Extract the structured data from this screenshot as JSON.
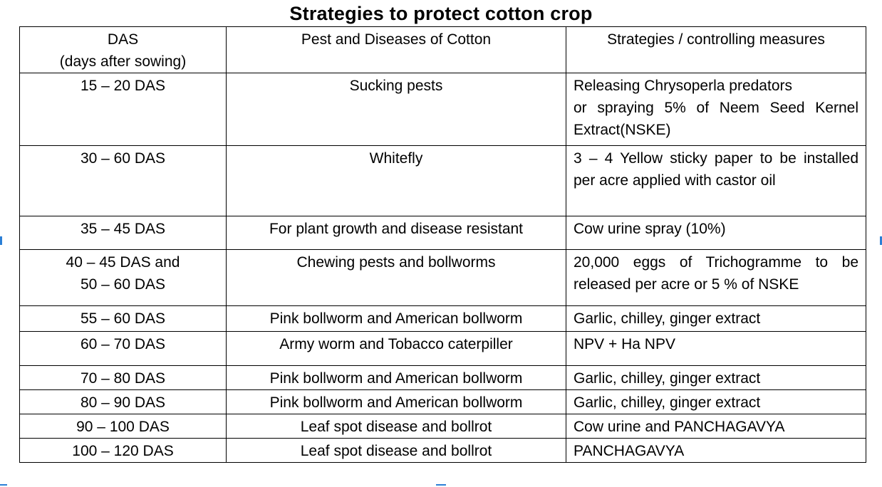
{
  "title": "Strategies to protect cotton crop",
  "table": {
    "headers": {
      "das": "DAS\n(days after sowing)",
      "pest": "Pest and Diseases of Cotton",
      "strategy": "Strategies / controlling measures"
    },
    "rows": [
      {
        "das": "15 – 20 DAS",
        "pest": "Sucking pests",
        "strategy": "Releasing Chrysoperla predators\nor spraying 5% of Neem Seed Kernel Extract(NSKE)"
      },
      {
        "das": "30 – 60 DAS",
        "pest": "Whitefly",
        "strategy": "3 – 4 Yellow sticky paper to be installed per acre applied with castor oil"
      },
      {
        "das": "35 – 45 DAS",
        "pest": "For plant growth and disease resistant",
        "strategy": "Cow urine spray (10%)"
      },
      {
        "das": "40 – 45 DAS and\n50 – 60 DAS",
        "pest": "Chewing pests and bollworms",
        "strategy": "20,000 eggs of Trichogramme to be released per acre or 5 % of NSKE"
      },
      {
        "das": "55 – 60 DAS",
        "pest": "Pink bollworm and  American bollworm",
        "strategy": "Garlic, chilley, ginger extract"
      },
      {
        "das": "60 – 70 DAS",
        "pest": "Army worm and Tobacco caterpiller",
        "strategy": "NPV + Ha NPV"
      },
      {
        "das": "70 – 80 DAS",
        "pest": "Pink bollworm and American bollworm",
        "strategy": "Garlic, chilley, ginger extract"
      },
      {
        "das": "80 – 90 DAS",
        "pest": "Pink bollworm and American bollworm",
        "strategy": "Garlic, chilley, ginger extract"
      },
      {
        "das": "90 – 100 DAS",
        "pest": "Leaf spot disease and bollrot",
        "strategy": "Cow urine  and PANCHAGAVYA"
      },
      {
        "das": "100 – 120 DAS",
        "pest": "Leaf spot disease and bollrot",
        "strategy": "PANCHAGAVYA"
      }
    ]
  },
  "colors": {
    "text": "#000000",
    "border": "#000000",
    "selection_marker": "#2b7fd6"
  }
}
